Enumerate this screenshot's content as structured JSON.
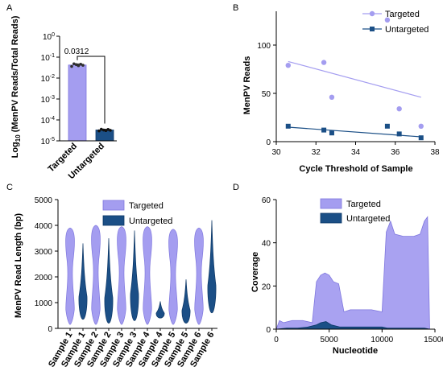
{
  "colors": {
    "targeted": "#a49df0",
    "targeted_edge": "#7f77de",
    "untargeted": "#1b4f86",
    "untargeted_edge": "#0d3766",
    "axis": "#000000"
  },
  "chart_data": [
    {
      "panel": "A",
      "type": "bar",
      "ylabel": "Log10 (MenPV Reads/Total Reads)",
      "yscale": "log",
      "ylim": [
        1e-05,
        1
      ],
      "yticks": [
        {
          "value": 1,
          "base": "10",
          "exp": "0"
        },
        {
          "value": 0.1,
          "base": "10",
          "exp": "-1"
        },
        {
          "value": 0.01,
          "base": "10",
          "exp": "-2"
        },
        {
          "value": 0.001,
          "base": "10",
          "exp": "-3"
        },
        {
          "value": 0.0001,
          "base": "10",
          "exp": "-4"
        },
        {
          "value": 1e-05,
          "base": "10",
          "exp": "-5"
        }
      ],
      "categories": [
        "Targeted",
        "Untargeted"
      ],
      "values": [
        0.042,
        3.3e-05
      ],
      "points": [
        [
          0.036,
          0.048,
          0.044,
          0.039,
          0.046,
          0.041
        ],
        [
          3e-05,
          3.6e-05,
          3.3e-05,
          3.1e-05,
          3.5e-05,
          3.2e-05
        ]
      ],
      "annotation": "0.0312"
    },
    {
      "panel": "B",
      "type": "scatter",
      "xlabel": "Cycle Threshold of Sample",
      "ylabel": "MenPV Reads",
      "xlim": [
        30,
        38
      ],
      "ylim": [
        0,
        135
      ],
      "xticks": [
        30,
        32,
        34,
        36,
        38
      ],
      "yticks": [
        0,
        50,
        100
      ],
      "legend_position": "top-right",
      "series": [
        {
          "name": "Targeted",
          "x": [
            30.6,
            32.4,
            32.8,
            35.6,
            36.2,
            37.3
          ],
          "y": [
            79,
            82,
            46,
            126,
            34,
            16
          ],
          "fit": [
            [
              30.6,
              83
            ],
            [
              37.3,
              46
            ]
          ]
        },
        {
          "name": "Untargeted",
          "x": [
            30.6,
            32.4,
            32.8,
            35.6,
            36.2,
            37.3
          ],
          "y": [
            16,
            12,
            9,
            16,
            8,
            4
          ],
          "fit": [
            [
              30.6,
              15
            ],
            [
              37.3,
              5
            ]
          ]
        }
      ]
    },
    {
      "panel": "C",
      "type": "violin",
      "ylabel": "MenPV Read Length (bp)",
      "ylim": [
        0,
        5000
      ],
      "yticks": [
        0,
        1000,
        2000,
        3000,
        4000,
        5000
      ],
      "categories": [
        "Sample 1",
        "Sample 1",
        "Sample 2",
        "Sample 2",
        "Sample 3",
        "Sample 3",
        "Sample 4",
        "Sample 4",
        "Sample 5",
        "Sample 5",
        "Sample 6",
        "Sample 6"
      ],
      "groups": [
        "Targeted",
        "Untargeted",
        "Targeted",
        "Untargeted",
        "Targeted",
        "Untargeted",
        "Targeted",
        "Untargeted",
        "Targeted",
        "Untargeted",
        "Targeted",
        "Untargeted"
      ],
      "ranges": [
        [
          150,
          3900
        ],
        [
          350,
          3300
        ],
        [
          150,
          4000
        ],
        [
          200,
          3500
        ],
        [
          150,
          3950
        ],
        [
          300,
          3800
        ],
        [
          150,
          3950
        ],
        [
          400,
          1050
        ],
        [
          150,
          3850
        ],
        [
          200,
          1900
        ],
        [
          150,
          3900
        ],
        [
          600,
          4200
        ]
      ],
      "legend_position": "top-right"
    },
    {
      "panel": "D",
      "type": "area",
      "xlabel": "Nucleotide",
      "ylabel": "Coverage",
      "xlim": [
        0,
        15000
      ],
      "ylim": [
        0,
        60
      ],
      "xticks": [
        0,
        5000,
        10000,
        15000
      ],
      "yticks": [
        0,
        20,
        40,
        60
      ],
      "legend_position": "top-left",
      "series": [
        {
          "name": "Targeted",
          "x": [
            0,
            300,
            700,
            1500,
            2500,
            3400,
            3800,
            4200,
            4600,
            5000,
            5400,
            5900,
            6400,
            7000,
            8000,
            9000,
            10000,
            10400,
            10800,
            11200,
            12000,
            13000,
            13600,
            14000,
            14300,
            14500
          ],
          "y": [
            0,
            4,
            3,
            4,
            4,
            3,
            22,
            25,
            26,
            25,
            22,
            21,
            8,
            9,
            9,
            9,
            8,
            45,
            50,
            44,
            43,
            43,
            44,
            50,
            52,
            0
          ]
        },
        {
          "name": "Untargeted",
          "x": [
            0,
            1000,
            2000,
            3000,
            3800,
            4200,
            4700,
            5200,
            6000,
            7000,
            8000,
            9000,
            10000,
            10500,
            11000,
            12000,
            13000,
            14000,
            14500
          ],
          "y": [
            0,
            0.5,
            0.5,
            1,
            2,
            3,
            3.5,
            2,
            1,
            1,
            1,
            1,
            1,
            0.5,
            0.5,
            0.5,
            0.5,
            0.5,
            0
          ]
        }
      ]
    }
  ],
  "labels": {
    "a_panel": "A",
    "b_panel": "B",
    "c_panel": "C",
    "d_panel": "D",
    "a_ylabel_pre": "Log",
    "a_ylabel_sub": "10",
    "a_ylabel_post": " (MenPV Reads/Total Reads)",
    "a_cat_1": "Targeted",
    "a_cat_2": "Untargeted",
    "a_pvalue": "0.0312",
    "b_xlabel": "Cycle Threshold of Sample",
    "b_ylabel": "MenPV Reads",
    "b_legend_1": "Targeted",
    "b_legend_2": "Untargeted",
    "c_ylabel": "MenPV Read Length (bp)",
    "c_legend_1": "Targeted",
    "c_legend_2": "Untargeted",
    "d_xlabel": "Nucleotide",
    "d_ylabel": "Coverage",
    "d_legend_1": "Targeted",
    "d_legend_2": "Untargeted"
  }
}
